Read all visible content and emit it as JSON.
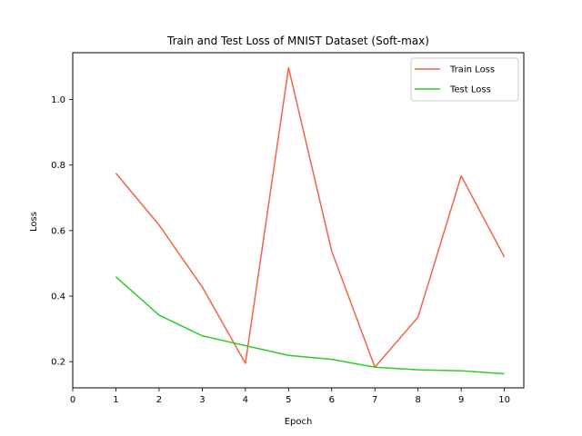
{
  "chart_data": {
    "type": "line",
    "title": "Train and Test Loss of MNIST Dataset (Soft-max)",
    "xlabel": "Epoch",
    "ylabel": "Loss",
    "xlim": [
      0,
      10.45
    ],
    "ylim": [
      0.12,
      1.143
    ],
    "xticks": [
      0,
      1,
      2,
      3,
      4,
      5,
      6,
      7,
      8,
      9,
      10
    ],
    "yticks": [
      0.2,
      0.4,
      0.6,
      0.8,
      1.0
    ],
    "ytick_labels": [
      "0.2",
      "0.4",
      "0.6",
      "0.8",
      "1.0"
    ],
    "grid": false,
    "legend_position": "top-right",
    "x": [
      1,
      2,
      3,
      4,
      5,
      6,
      7,
      8,
      9,
      10
    ],
    "series": [
      {
        "name": "Train Loss",
        "color": "#f0644a",
        "values": [
          0.775,
          0.617,
          0.428,
          0.195,
          1.097,
          0.537,
          0.183,
          0.336,
          0.767,
          0.519
        ]
      },
      {
        "name": "Test Loss",
        "color": "#2ecc2e",
        "values": [
          0.459,
          0.342,
          0.279,
          0.249,
          0.219,
          0.207,
          0.183,
          0.175,
          0.172,
          0.163
        ]
      }
    ]
  }
}
